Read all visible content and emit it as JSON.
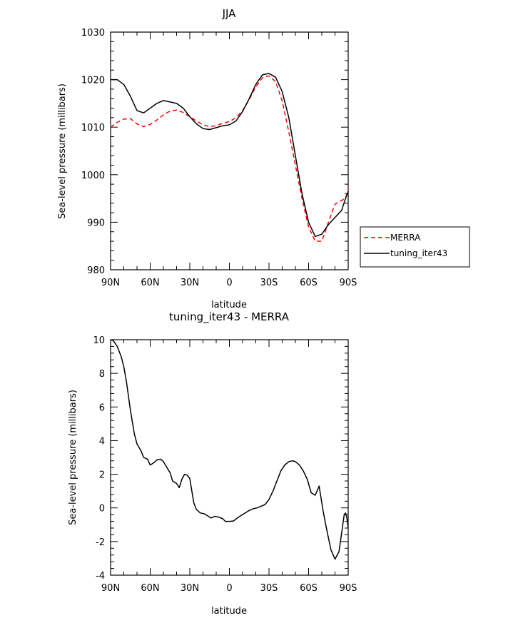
{
  "chart_data": [
    {
      "type": "line",
      "title": "JJA",
      "xlabel": "latitude",
      "ylabel": "Sea-level pressure (millibars)",
      "xlim": [
        90,
        -90
      ],
      "ylim": [
        980,
        1030
      ],
      "x_tick_labels": [
        "90N",
        "60N",
        "30N",
        "0",
        "30S",
        "60S",
        "90S"
      ],
      "x_ticks": [
        90,
        60,
        30,
        0,
        -30,
        -60,
        -90
      ],
      "y_ticks": [
        980,
        990,
        1000,
        1010,
        1020,
        1030
      ],
      "legend_position": "right",
      "series": [
        {
          "name": "MERRA",
          "color": "#ff0000",
          "style": "dashed",
          "x": [
            90,
            85,
            80,
            75,
            70,
            65,
            60,
            55,
            50,
            45,
            40,
            35,
            30,
            25,
            20,
            15,
            10,
            5,
            0,
            -5,
            -10,
            -15,
            -20,
            -25,
            -30,
            -35,
            -40,
            -45,
            -50,
            -55,
            -60,
            -65,
            -70,
            -72,
            -75,
            -80,
            -85,
            -88,
            -90
          ],
          "values": [
            1010,
            1011,
            1011.7,
            1011.8,
            1010.7,
            1010.1,
            1010.6,
            1011.5,
            1012.6,
            1013.4,
            1013.6,
            1013.1,
            1012.2,
            1011.3,
            1010.5,
            1010.1,
            1010.3,
            1010.8,
            1011.2,
            1012.0,
            1013.5,
            1015.8,
            1018.5,
            1020.4,
            1020.8,
            1019.6,
            1015.5,
            1009.0,
            1002.0,
            995.0,
            989.0,
            986.0,
            986.0,
            987.5,
            990.0,
            993.8,
            994.6,
            995.0,
            997.0
          ]
        },
        {
          "name": "tuning_iter43",
          "color": "#000000",
          "style": "solid",
          "x": [
            90,
            85,
            80,
            75,
            70,
            65,
            60,
            55,
            50,
            45,
            40,
            35,
            30,
            25,
            20,
            15,
            10,
            5,
            0,
            -5,
            -10,
            -15,
            -20,
            -25,
            -30,
            -35,
            -40,
            -45,
            -50,
            -55,
            -60,
            -65,
            -70,
            -75,
            -80,
            -85,
            -88,
            -90
          ],
          "values": [
            1020,
            1020,
            1019,
            1016.5,
            1013.5,
            1013,
            1014,
            1015,
            1015.6,
            1015.3,
            1015,
            1014,
            1012.2,
            1010.7,
            1009.7,
            1009.5,
            1009.9,
            1010.3,
            1010.5,
            1011.3,
            1013.3,
            1016.0,
            1019.0,
            1021.0,
            1021.3,
            1020.5,
            1017.5,
            1012.0,
            1004.0,
            996.0,
            990.0,
            987.0,
            987.5,
            989.5,
            991.0,
            992.5,
            995.0,
            996.5
          ]
        }
      ]
    },
    {
      "type": "line",
      "title": "tuning_iter43 - MERRA",
      "xlabel": "latitude",
      "ylabel": "Sea-level pressure (millibars)",
      "xlim": [
        90,
        -90
      ],
      "ylim": [
        -4,
        10
      ],
      "x_tick_labels": [
        "90N",
        "60N",
        "30N",
        "0",
        "30S",
        "60S",
        "90S"
      ],
      "x_ticks": [
        90,
        60,
        30,
        0,
        -30,
        -60,
        -90
      ],
      "y_ticks": [
        -4,
        -2,
        0,
        2,
        4,
        6,
        8,
        10
      ],
      "series": [
        {
          "color": "#000000",
          "style": "solid",
          "x": [
            90,
            88,
            85,
            82,
            80,
            78,
            75,
            72,
            70,
            67,
            65,
            62,
            60,
            57,
            55,
            52,
            50,
            47,
            45,
            43,
            40,
            38,
            36,
            34,
            32,
            30,
            27,
            25,
            22,
            19,
            17,
            14,
            11,
            8,
            5,
            3,
            0,
            -3,
            -6,
            -9,
            -12,
            -15,
            -18,
            -21,
            -24,
            -27,
            -30,
            -33,
            -36,
            -39,
            -42,
            -45,
            -48,
            -50,
            -53,
            -56,
            -59,
            -62,
            -65,
            -68,
            -71,
            -74,
            -77,
            -80,
            -83,
            -85,
            -87,
            -88,
            -89,
            -90
          ],
          "values": [
            10,
            9.95,
            9.6,
            9.0,
            8.4,
            7.5,
            5.8,
            4.4,
            3.8,
            3.4,
            3.0,
            2.9,
            2.55,
            2.7,
            2.85,
            2.9,
            2.75,
            2.35,
            2.1,
            1.6,
            1.45,
            1.2,
            1.7,
            2.0,
            1.95,
            1.75,
            0.3,
            -0.1,
            -0.3,
            -0.35,
            -0.45,
            -0.6,
            -0.5,
            -0.55,
            -0.65,
            -0.8,
            -0.8,
            -0.78,
            -0.6,
            -0.45,
            -0.3,
            -0.15,
            -0.05,
            0.0,
            0.1,
            0.2,
            0.5,
            1.0,
            1.6,
            2.2,
            2.55,
            2.75,
            2.8,
            2.75,
            2.55,
            2.2,
            1.7,
            0.9,
            0.75,
            1.3,
            -0.2,
            -1.4,
            -2.5,
            -3.05,
            -2.6,
            -1.5,
            -0.4,
            -0.3,
            -0.6,
            -1.2
          ]
        }
      ]
    }
  ]
}
